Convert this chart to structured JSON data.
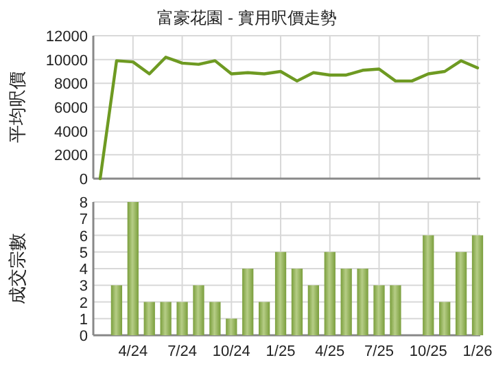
{
  "chart_data": [
    {
      "type": "line",
      "title": "富豪花園 - 實用呎價走勢",
      "ylabel": "平均呎價",
      "categories": [
        null,
        null,
        null,
        null,
        null,
        null,
        null,
        null,
        null,
        null,
        null,
        null,
        null,
        null,
        null,
        null,
        null,
        null,
        null,
        null,
        null,
        null,
        null,
        null
      ],
      "series": [
        {
          "color": "#6e9a22",
          "values": [
            0,
            9900,
            9800,
            8800,
            10200,
            9700,
            9600,
            9900,
            8800,
            8900,
            8800,
            9000,
            8200,
            8900,
            8700,
            8700,
            9100,
            9200,
            8200,
            8200,
            8800,
            9000,
            9900,
            9300
          ]
        }
      ],
      "ylim": [
        0,
        12000
      ],
      "yticks": [
        0,
        2000,
        4000,
        6000,
        8000,
        10000,
        12000
      ],
      "grid": true,
      "tick_labels": "y",
      "marker": "none"
    },
    {
      "type": "bar",
      "ylabel": "成交宗數",
      "categories": [
        null,
        null,
        "4/24",
        null,
        null,
        "7/24",
        null,
        null,
        "10/24",
        null,
        null,
        "1/25",
        null,
        null,
        "4/25",
        null,
        null,
        "7/25",
        null,
        null,
        "10/25",
        null,
        null,
        "1/26"
      ],
      "series": [
        {
          "color": "#7a9e3c",
          "values": [
            null,
            3,
            8,
            2,
            2,
            2,
            3,
            2,
            1,
            4,
            2,
            5,
            4,
            3,
            5,
            4,
            4,
            3,
            3,
            null,
            6,
            2,
            5,
            6
          ]
        }
      ],
      "ylim": [
        0,
        8
      ],
      "yticks": [
        0,
        1,
        2,
        3,
        4,
        5,
        6,
        7,
        8
      ],
      "grid": true
    }
  ]
}
